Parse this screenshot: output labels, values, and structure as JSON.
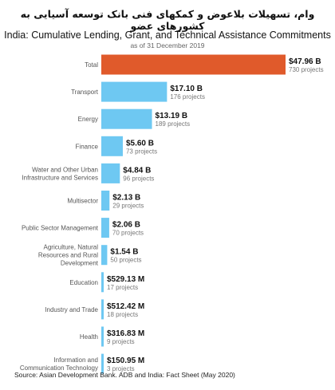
{
  "header": {
    "persian_title": "وام، تسهیلات بلاعوض و کمکهای فنی بانک توسعه آسیایی به کشورهای عضو",
    "title": "India: Cumulative Lending, Grant, and Technical Assistance Commitments",
    "subtitle": "as of 31 December 2019"
  },
  "footer": {
    "source": "Source: Asian Development Bank. ADB and India: Fact Sheet (May 2020)"
  },
  "colors": {
    "highlight": "#e05a2b",
    "bar": "#6ec8f2"
  },
  "chart_data": {
    "type": "bar",
    "orientation": "horizontal",
    "title": "India: Cumulative Lending, Grant, and Technical Assistance Commitments",
    "subtitle": "as of 31 December 2019",
    "unit": "USD billions",
    "categories": [
      [
        "Total"
      ],
      [
        "Transport"
      ],
      [
        "Energy"
      ],
      [
        "Finance"
      ],
      [
        "Water and Other Urban",
        "Infrastructure and Services"
      ],
      [
        "Multisector"
      ],
      [
        "Public Sector Management"
      ],
      [
        "Agriculture, Natural",
        "Resources and Rural",
        "Development"
      ],
      [
        "Education"
      ],
      [
        "Industry and Trade"
      ],
      [
        "Health"
      ],
      [
        "Information and",
        "Communication Technology"
      ]
    ],
    "values": [
      47.96,
      17.1,
      13.19,
      5.6,
      4.84,
      2.13,
      2.06,
      1.54,
      0.52913,
      0.51242,
      0.31683,
      0.15095
    ],
    "value_labels": [
      "$47.96 B",
      "$17.10 B",
      "$13.19 B",
      "$5.60 B",
      "$4.84 B",
      "$2.13 B",
      "$2.06 B",
      "$1.54 B",
      "$529.13 M",
      "$512.42 M",
      "$316.83 M",
      "$150.95 M"
    ],
    "project_labels": [
      "730 projects",
      "176 projects",
      "189 projects",
      "73 projects",
      "96 projects",
      "29 projects",
      "70 projects",
      "50 projects",
      "17 projects",
      "18 projects",
      "9 projects",
      "3 projects"
    ],
    "highlight_index": 0,
    "grid": false,
    "legend": "none"
  }
}
